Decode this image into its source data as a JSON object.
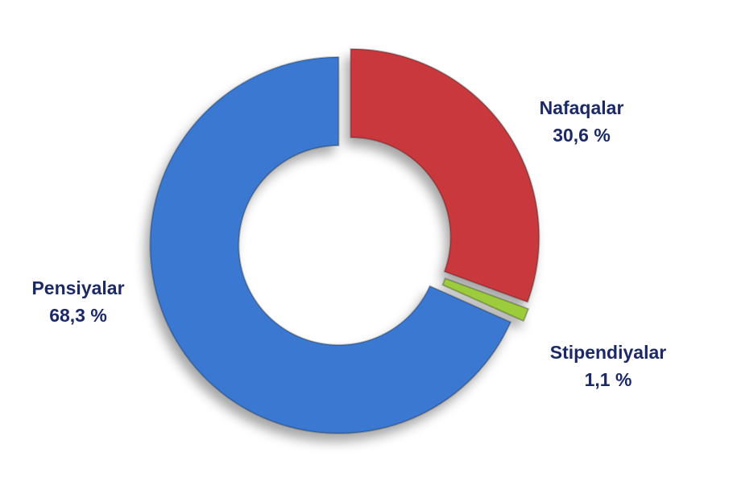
{
  "chart_data": {
    "type": "donut",
    "categories": [
      "Nafaqalar",
      "Stipendiyalar",
      "Pensiyalar"
    ],
    "values": [
      30.6,
      1.1,
      68.3
    ],
    "value_labels": [
      "30,6 %",
      "1,1 %",
      "68,3 %"
    ],
    "colors": [
      "#c9393c",
      "#9ccc3a",
      "#3a78d2"
    ]
  }
}
